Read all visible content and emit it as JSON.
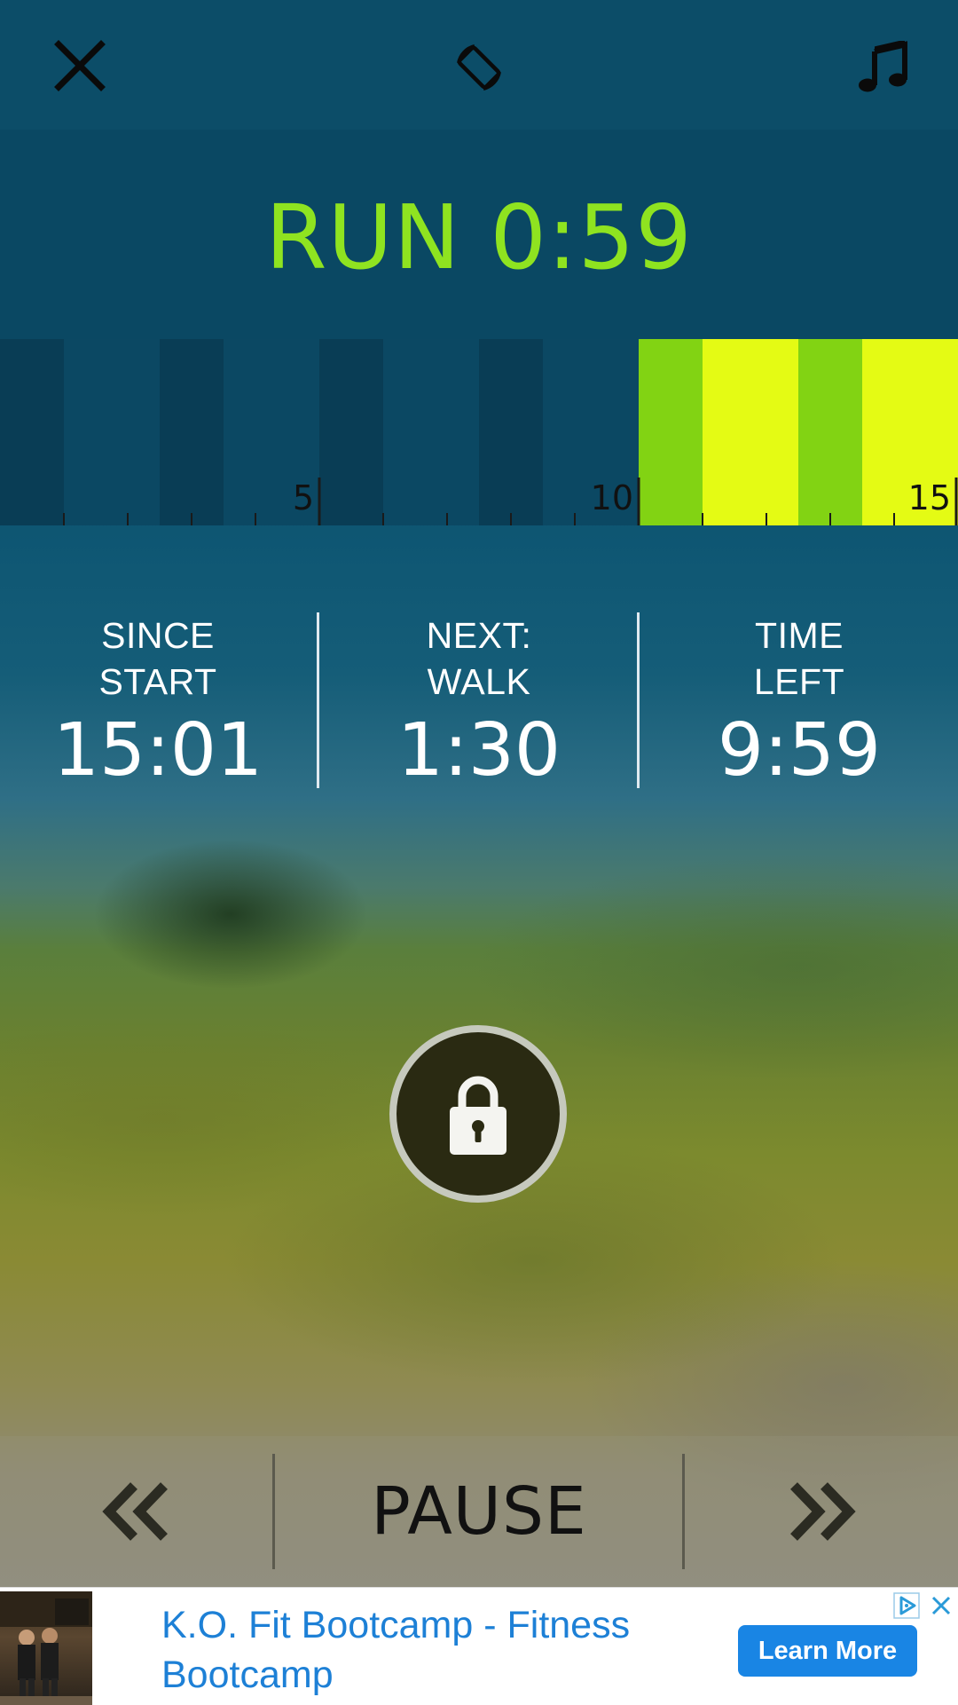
{
  "icons": {
    "close": "close-icon",
    "rotate": "screen-rotation-icon",
    "music": "music-note-icon",
    "lock": "lock-icon",
    "previous": "double-chevron-left-icon",
    "next": "double-chevron-right-icon",
    "ad_choices": "ad-choices-icon",
    "ad_close": "close-icon"
  },
  "interval": {
    "title": "RUN 0:59",
    "color": "#8fe320"
  },
  "timeline": {
    "tick_labels": [
      "5",
      "10",
      "15"
    ],
    "visible_minutes": [
      0,
      15
    ],
    "segments": [
      {
        "start": 0,
        "end": 1,
        "color": "#093d55"
      },
      {
        "start": 1,
        "end": 2.5,
        "color": "#0b4863"
      },
      {
        "start": 2.5,
        "end": 3.5,
        "color": "#093d55"
      },
      {
        "start": 3.5,
        "end": 5,
        "color": "#0b4863"
      },
      {
        "start": 5,
        "end": 6,
        "color": "#093d55"
      },
      {
        "start": 6,
        "end": 7.5,
        "color": "#0b4863"
      },
      {
        "start": 7.5,
        "end": 8.5,
        "color": "#093d55"
      },
      {
        "start": 8.5,
        "end": 10,
        "color": "#0b4863"
      },
      {
        "start": 10,
        "end": 11,
        "color": "#82d313"
      },
      {
        "start": 11,
        "end": 12.5,
        "color": "#e4fb14"
      },
      {
        "start": 12.5,
        "end": 13.5,
        "color": "#82d313"
      },
      {
        "start": 13.5,
        "end": 15,
        "color": "#e4fb14"
      }
    ]
  },
  "stats": {
    "since_start": {
      "label_line1": "SINCE",
      "label_line2": "START",
      "value": "15:01"
    },
    "next": {
      "label_line1": "NEXT:",
      "label_line2": "WALK",
      "value": "1:30"
    },
    "time_left": {
      "label_line1": "TIME",
      "label_line2": "LEFT",
      "value": "9:59"
    }
  },
  "controls": {
    "pause_label": "PAUSE"
  },
  "ad": {
    "title": "K.O. Fit Bootcamp - Fitness Bootcamp",
    "cta": "Learn More",
    "link_color": "#1d80d6",
    "button_color": "#1985e4"
  }
}
